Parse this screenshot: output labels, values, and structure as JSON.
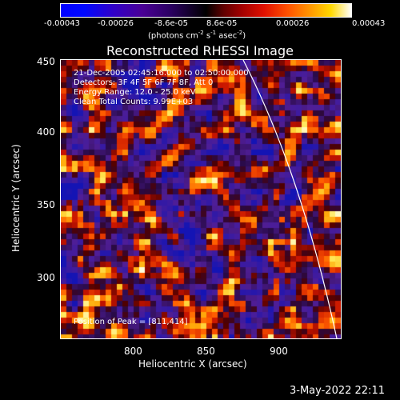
{
  "title": "Reconstructed RHESSI Image",
  "colorbar": {
    "ticks": [
      "-0.00043",
      "-0.00026",
      "-8.6e-05",
      "8.6e-05",
      "0.00026",
      "0.00043"
    ],
    "units_main": "(photons cm",
    "units_exp1": "-2",
    "units_s": " s",
    "units_exp2": "-1",
    "units_asec": " asec",
    "units_exp3": "-2",
    "units_close": ")"
  },
  "axes": {
    "x_label": "Heliocentric X (arcsec)",
    "y_label": "Heliocentric Y (arcsec)",
    "x_ticks": [
      "800",
      "850",
      "900"
    ],
    "y_ticks": [
      "450",
      "400",
      "350",
      "300"
    ]
  },
  "annotations": {
    "time_range": "21-Dec-2005 02:45:16.000 to 02:50:00.000",
    "detectors": "Detectors: 3F 4F 5F 6F 7F 8F, Att 0",
    "energy": "Energy Range: 12.0 - 25.0 keV",
    "method": "Clean   Total Counts: 9.99E+03",
    "peak": "Position of Peak = [811,414]"
  },
  "timestamp": "3-May-2022 22:11"
}
